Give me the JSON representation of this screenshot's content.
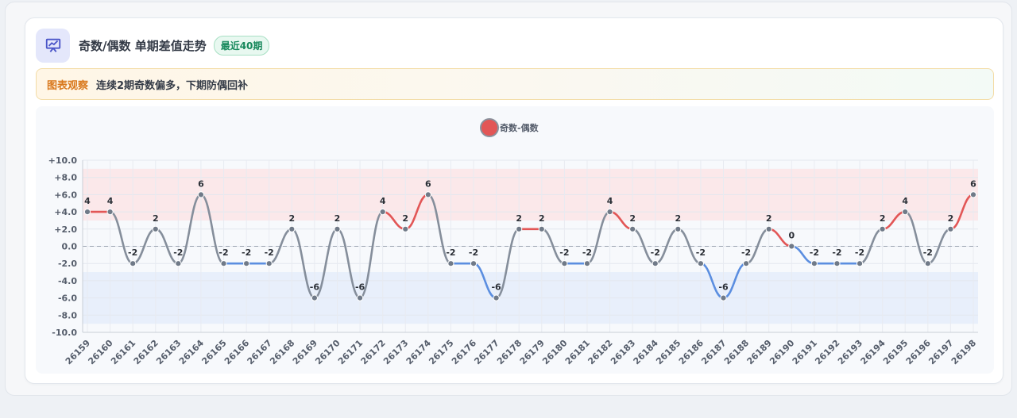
{
  "header": {
    "icon": "presentation-chart-icon",
    "title": "奇数/偶数 单期差值走势",
    "badge": "最近40期"
  },
  "note": {
    "tag": "图表观察",
    "text": "连续2期奇数偏多，下期防偶回补"
  },
  "colors": {
    "positive": "#e25656",
    "negative": "#5b8ee0",
    "neutral": "#858e9b",
    "point": "#707a88",
    "upper_band": "#fbe6e8",
    "lower_band": "#e6edfb"
  },
  "chart_data": {
    "type": "line",
    "title": "",
    "xlabel": "",
    "ylabel": "",
    "legend": "top-center",
    "grid": true,
    "ylim": [
      -10,
      10
    ],
    "y_ticks": [
      "+10.0",
      "+8.0",
      "+6.0",
      "+4.0",
      "+2.0",
      "0.0",
      "-2.0",
      "-4.0",
      "-6.0",
      "-8.0",
      "-10.0"
    ],
    "bands": [
      {
        "from": 3,
        "to": 9,
        "color": "#fbe6e8"
      },
      {
        "from": -9,
        "to": -3,
        "color": "#e6edfb"
      }
    ],
    "reference_line": 0,
    "categories": [
      "26159",
      "26160",
      "26161",
      "26162",
      "26163",
      "26164",
      "26165",
      "26166",
      "26167",
      "26168",
      "26169",
      "26170",
      "26171",
      "26172",
      "26173",
      "26174",
      "26175",
      "26176",
      "26177",
      "26178",
      "26179",
      "26180",
      "26181",
      "26182",
      "26183",
      "26184",
      "26185",
      "26186",
      "26187",
      "26188",
      "26189",
      "26190",
      "26191",
      "26192",
      "26193",
      "26194",
      "26195",
      "26196",
      "26197",
      "26198"
    ],
    "series": [
      {
        "name": "奇数-偶数",
        "values": [
          4,
          4,
          -2,
          2,
          -2,
          6,
          -2,
          -2,
          -2,
          2,
          -6,
          2,
          -6,
          4,
          2,
          6,
          -2,
          -2,
          -6,
          2,
          2,
          -2,
          -2,
          4,
          2,
          -2,
          2,
          -2,
          -6,
          -2,
          2,
          0,
          -2,
          -2,
          -2,
          2,
          4,
          -2,
          2,
          6
        ]
      }
    ]
  }
}
